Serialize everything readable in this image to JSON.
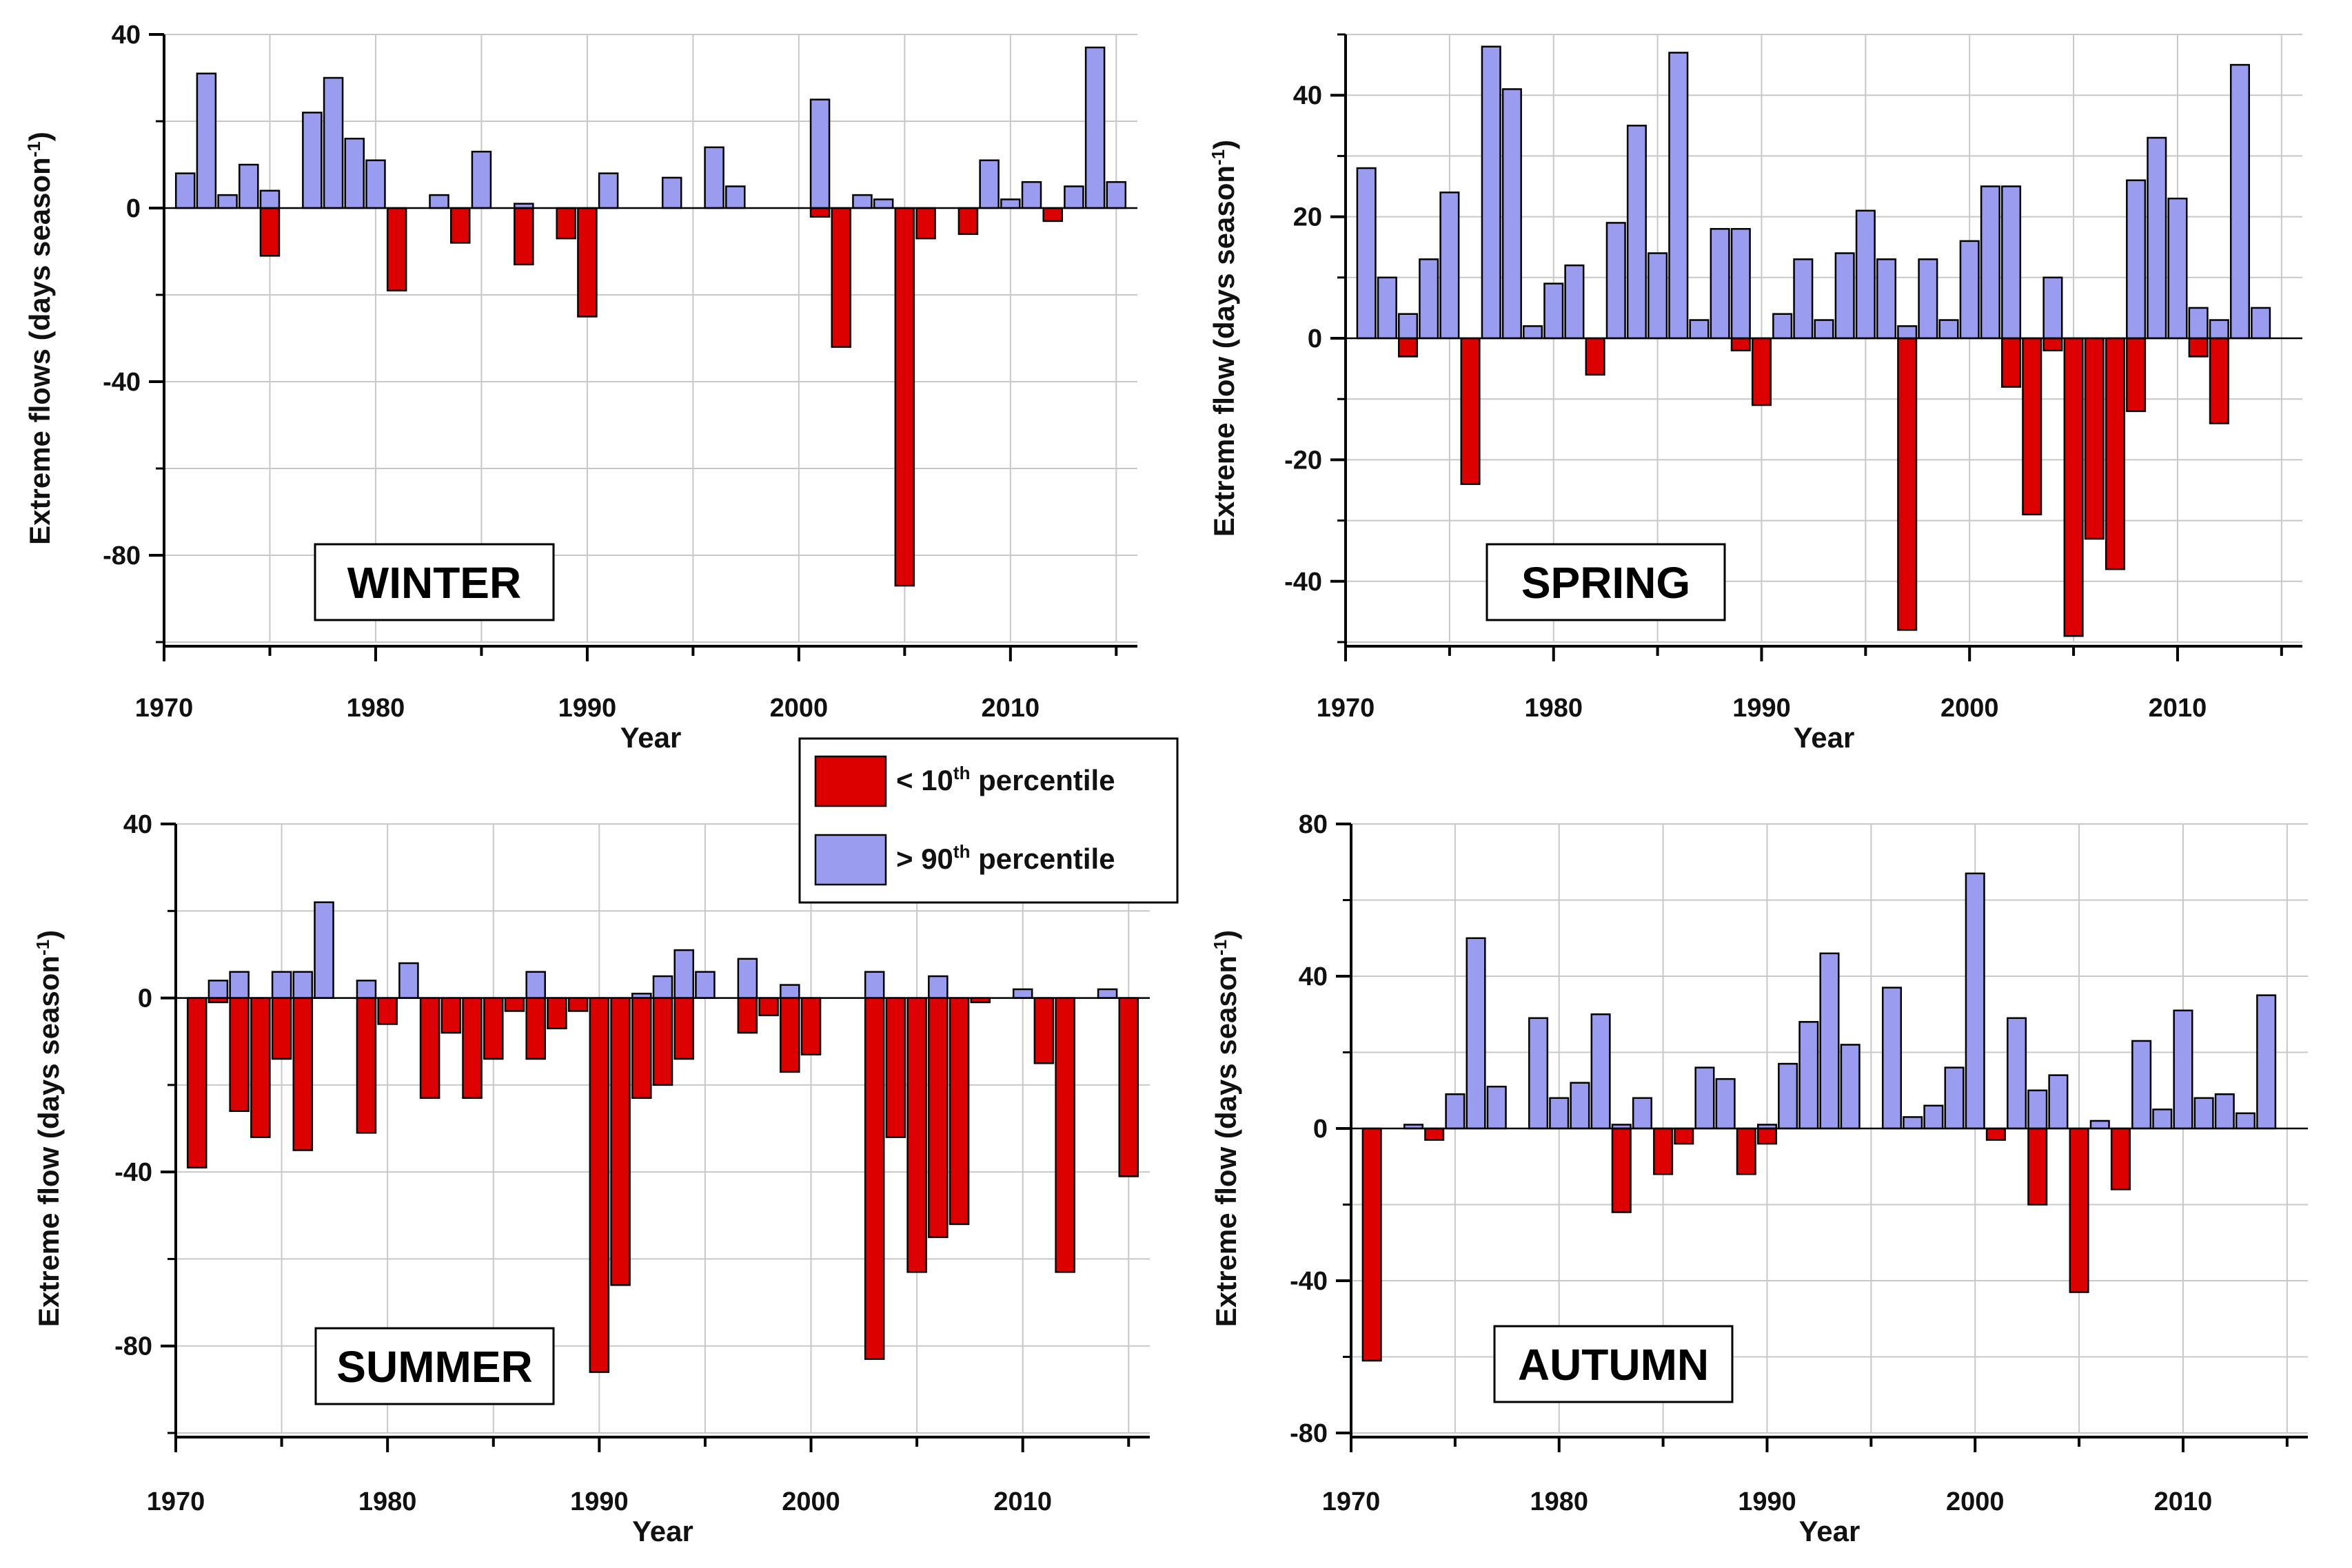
{
  "colors": {
    "below": "#dd0000",
    "above": "#9a9cf0"
  },
  "legend": {
    "below": {
      "prefix": "< 10",
      "sup": "th",
      "suffix": " percentile"
    },
    "above": {
      "prefix": "> 90",
      "sup": "th",
      "suffix": " percentile"
    }
  },
  "chart_data": [
    {
      "type": "bar",
      "id": "winter",
      "title": "WINTER",
      "xlabel": "Year",
      "ylabel": {
        "main": "Extreme flows (days season",
        "sup": "-1",
        "end": ")"
      },
      "xlim": [
        1970,
        2016
      ],
      "ylim": [
        -100,
        40
      ],
      "yticks": [
        40,
        0,
        -40,
        -80
      ],
      "xticks": [
        1970,
        1980,
        1990,
        2000,
        2010
      ],
      "series": [
        {
          "name": "< 10th percentile",
          "points": [
            [
              1975,
              -11
            ],
            [
              1981,
              -19
            ],
            [
              1984,
              -8
            ],
            [
              1987,
              -13
            ],
            [
              1989,
              -7
            ],
            [
              1990,
              -25
            ],
            [
              2001,
              -2
            ],
            [
              2002,
              -32
            ],
            [
              2005,
              -87
            ],
            [
              2006,
              -7
            ],
            [
              2008,
              -6
            ],
            [
              2012,
              -3
            ]
          ]
        },
        {
          "name": "> 90th percentile",
          "points": [
            [
              1971,
              8
            ],
            [
              1972,
              31
            ],
            [
              1973,
              3
            ],
            [
              1974,
              10
            ],
            [
              1975,
              4
            ],
            [
              1977,
              22
            ],
            [
              1978,
              30
            ],
            [
              1979,
              16
            ],
            [
              1980,
              11
            ],
            [
              1983,
              3
            ],
            [
              1985,
              13
            ],
            [
              1987,
              1
            ],
            [
              1991,
              8
            ],
            [
              1994,
              7
            ],
            [
              1996,
              14
            ],
            [
              1997,
              5
            ],
            [
              2001,
              25
            ],
            [
              2003,
              3
            ],
            [
              2004,
              2
            ],
            [
              2009,
              11
            ],
            [
              2010,
              2
            ],
            [
              2011,
              6
            ],
            [
              2013,
              5
            ],
            [
              2014,
              37
            ],
            [
              2015,
              6
            ]
          ]
        }
      ]
    },
    {
      "type": "bar",
      "id": "spring",
      "title": "SPRING",
      "xlabel": "Year",
      "ylabel": {
        "main": "Extreme flow (days season",
        "sup": "-1",
        "end": ")"
      },
      "xlim": [
        1970,
        2016
      ],
      "ylim": [
        -50,
        50
      ],
      "yticks": [
        40,
        20,
        0,
        -20,
        -40
      ],
      "xticks": [
        1970,
        1980,
        1990,
        2000,
        2010
      ],
      "series": [
        {
          "name": "< 10th percentile",
          "points": [
            [
              1973,
              -3
            ],
            [
              1976,
              -24
            ],
            [
              1982,
              -6
            ],
            [
              1989,
              -2
            ],
            [
              1990,
              -11
            ],
            [
              1997,
              -48
            ],
            [
              2002,
              -8
            ],
            [
              2003,
              -29
            ],
            [
              2004,
              -2
            ],
            [
              2005,
              -49
            ],
            [
              2006,
              -33
            ],
            [
              2007,
              -38
            ],
            [
              2008,
              -12
            ],
            [
              2011,
              -3
            ],
            [
              2012,
              -14
            ]
          ]
        },
        {
          "name": "> 90th percentile",
          "points": [
            [
              1971,
              28
            ],
            [
              1972,
              10
            ],
            [
              1973,
              4
            ],
            [
              1974,
              13
            ],
            [
              1975,
              24
            ],
            [
              1977,
              48
            ],
            [
              1978,
              41
            ],
            [
              1979,
              2
            ],
            [
              1980,
              9
            ],
            [
              1981,
              12
            ],
            [
              1983,
              19
            ],
            [
              1984,
              35
            ],
            [
              1985,
              14
            ],
            [
              1986,
              47
            ],
            [
              1987,
              3
            ],
            [
              1988,
              18
            ],
            [
              1989,
              18
            ],
            [
              1991,
              4
            ],
            [
              1992,
              13
            ],
            [
              1993,
              3
            ],
            [
              1994,
              14
            ],
            [
              1995,
              21
            ],
            [
              1996,
              13
            ],
            [
              1997,
              2
            ],
            [
              1998,
              13
            ],
            [
              1999,
              3
            ],
            [
              2000,
              16
            ],
            [
              2001,
              25
            ],
            [
              2002,
              25
            ],
            [
              2004,
              10
            ],
            [
              2008,
              26
            ],
            [
              2009,
              33
            ],
            [
              2010,
              23
            ],
            [
              2011,
              5
            ],
            [
              2012,
              3
            ],
            [
              2013,
              45
            ],
            [
              2014,
              5
            ]
          ]
        }
      ]
    },
    {
      "type": "bar",
      "id": "summer",
      "title": "SUMMER",
      "xlabel": "Year",
      "ylabel": {
        "main": "Extreme flow (days season",
        "sup": "-1",
        "end": ")"
      },
      "xlim": [
        1970,
        2016
      ],
      "ylim": [
        -100,
        40
      ],
      "yticks": [
        40,
        0,
        -40,
        -80
      ],
      "xticks": [
        1970,
        1980,
        1990,
        2000,
        2010
      ],
      "series": [
        {
          "name": "< 10th percentile",
          "points": [
            [
              1971,
              -39
            ],
            [
              1972,
              -1
            ],
            [
              1973,
              -26
            ],
            [
              1974,
              -32
            ],
            [
              1975,
              -14
            ],
            [
              1976,
              -35
            ],
            [
              1979,
              -31
            ],
            [
              1980,
              -6
            ],
            [
              1982,
              -23
            ],
            [
              1983,
              -8
            ],
            [
              1984,
              -23
            ],
            [
              1985,
              -14
            ],
            [
              1986,
              -3
            ],
            [
              1987,
              -14
            ],
            [
              1988,
              -7
            ],
            [
              1989,
              -3
            ],
            [
              1990,
              -86
            ],
            [
              1991,
              -66
            ],
            [
              1992,
              -23
            ],
            [
              1993,
              -20
            ],
            [
              1994,
              -14
            ],
            [
              1997,
              -8
            ],
            [
              1998,
              -4
            ],
            [
              1999,
              -17
            ],
            [
              2000,
              -13
            ],
            [
              2003,
              -83
            ],
            [
              2004,
              -32
            ],
            [
              2005,
              -63
            ],
            [
              2006,
              -55
            ],
            [
              2007,
              -52
            ],
            [
              2008,
              -1
            ],
            [
              2011,
              -15
            ],
            [
              2012,
              -63
            ],
            [
              2015,
              -41
            ]
          ]
        },
        {
          "name": "> 90th percentile",
          "points": [
            [
              1972,
              4
            ],
            [
              1973,
              6
            ],
            [
              1975,
              6
            ],
            [
              1976,
              6
            ],
            [
              1977,
              22
            ],
            [
              1979,
              4
            ],
            [
              1981,
              8
            ],
            [
              1987,
              6
            ],
            [
              1992,
              1
            ],
            [
              1993,
              5
            ],
            [
              1994,
              11
            ],
            [
              1995,
              6
            ],
            [
              1997,
              9
            ],
            [
              1999,
              3
            ],
            [
              2003,
              6
            ],
            [
              2006,
              5
            ],
            [
              2010,
              2
            ],
            [
              2014,
              2
            ]
          ]
        }
      ]
    },
    {
      "type": "bar",
      "id": "autumn",
      "title": "AUTUMN",
      "xlabel": "Year",
      "ylabel": {
        "main": "Extreme flow (days season",
        "sup": "-1",
        "end": ")"
      },
      "xlim": [
        1970,
        2016
      ],
      "ylim": [
        -80,
        80
      ],
      "yticks": [
        80,
        40,
        0,
        -40,
        -80
      ],
      "xticks": [
        1970,
        1980,
        1990,
        2000,
        2010
      ],
      "series": [
        {
          "name": "< 10th percentile",
          "points": [
            [
              1971,
              -61
            ],
            [
              1974,
              -3
            ],
            [
              1983,
              -22
            ],
            [
              1985,
              -12
            ],
            [
              1986,
              -4
            ],
            [
              1989,
              -12
            ],
            [
              1990,
              -4
            ],
            [
              2001,
              -3
            ],
            [
              2003,
              -20
            ],
            [
              2005,
              -43
            ],
            [
              2007,
              -16
            ]
          ]
        },
        {
          "name": "> 90th percentile",
          "points": [
            [
              1973,
              1
            ],
            [
              1975,
              9
            ],
            [
              1976,
              50
            ],
            [
              1977,
              11
            ],
            [
              1979,
              29
            ],
            [
              1980,
              8
            ],
            [
              1981,
              12
            ],
            [
              1982,
              30
            ],
            [
              1983,
              1
            ],
            [
              1984,
              8
            ],
            [
              1987,
              16
            ],
            [
              1988,
              13
            ],
            [
              1990,
              1
            ],
            [
              1991,
              17
            ],
            [
              1992,
              28
            ],
            [
              1993,
              46
            ],
            [
              1994,
              22
            ],
            [
              1996,
              37
            ],
            [
              1997,
              3
            ],
            [
              1998,
              6
            ],
            [
              1999,
              16
            ],
            [
              2000,
              67
            ],
            [
              2002,
              29
            ],
            [
              2003,
              10
            ],
            [
              2004,
              14
            ],
            [
              2006,
              2
            ],
            [
              2008,
              23
            ],
            [
              2009,
              5
            ],
            [
              2010,
              31
            ],
            [
              2011,
              8
            ],
            [
              2012,
              9
            ],
            [
              2013,
              4
            ],
            [
              2014,
              35
            ]
          ]
        }
      ]
    }
  ]
}
